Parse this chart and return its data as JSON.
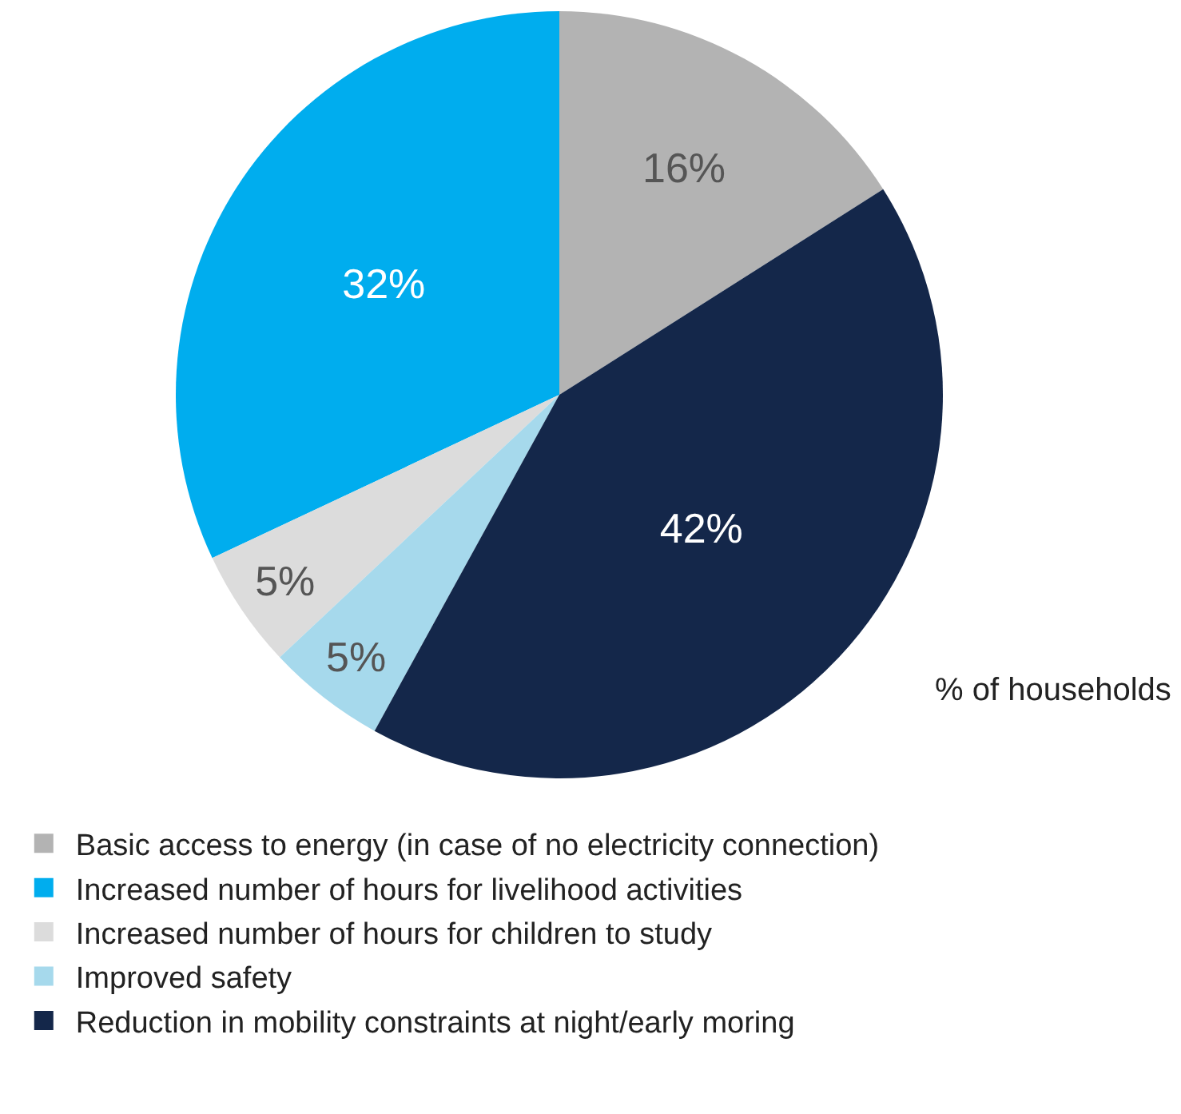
{
  "chart_data": {
    "type": "pie",
    "categories": [
      "Basic access to energy (in case of no electricity connection)",
      "Increased number of hours for livelihood activities",
      "Increased number of hours for children to study",
      "Improved safety",
      "Reduction in mobility constraints at night/early moring"
    ],
    "values": [
      16,
      32,
      5,
      5,
      42
    ],
    "colors": [
      "#b3b3b3",
      "#00adee",
      "#dcdcdc",
      "#a6d9ec",
      "#14274a"
    ],
    "value_labels": [
      "16%",
      "32%",
      "5%",
      "5%",
      "42%"
    ],
    "annotations": [
      "% of households"
    ],
    "legend": "bottom"
  }
}
